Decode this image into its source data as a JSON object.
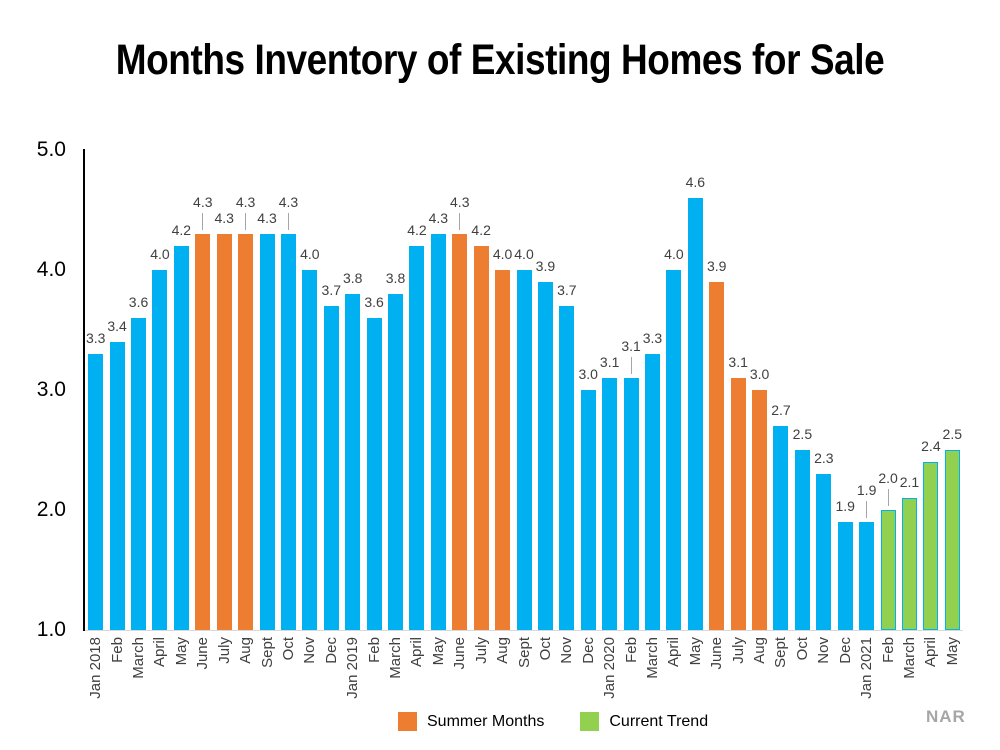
{
  "attribution": {
    "text": "NAR"
  },
  "chart_data": {
    "type": "bar",
    "title": "Months Inventory of Existing Homes for Sale",
    "xlabel": "",
    "ylabel": "",
    "ylim": [
      1.0,
      5.0
    ],
    "yticks": [
      5.0,
      4.0,
      3.0,
      2.0,
      1.0
    ],
    "grid": false,
    "legend_position": "bottom",
    "colors": {
      "regular": "#00B0F0",
      "summer": "#ED7D31",
      "trend": "#92D050",
      "trend_border": "#00B0F0",
      "data_label": "#404040",
      "leader_line": "#A6A6A6",
      "axis_line": "#000000",
      "baseline": "#D9D9D9"
    },
    "legend": [
      {
        "label": "Summer Months",
        "group": "summer",
        "color": "#ED7D31"
      },
      {
        "label": "Current Trend",
        "group": "trend",
        "color": "#92D050"
      }
    ],
    "points": [
      {
        "month": "Jan 2018",
        "value": 3.3,
        "group": "regular",
        "raised": false
      },
      {
        "month": "Feb",
        "value": 3.4,
        "group": "regular",
        "raised": false
      },
      {
        "month": "March",
        "value": 3.6,
        "group": "regular",
        "raised": false
      },
      {
        "month": "April",
        "value": 4.0,
        "group": "regular",
        "raised": false
      },
      {
        "month": "May",
        "value": 4.2,
        "group": "regular",
        "raised": false
      },
      {
        "month": "June",
        "value": 4.3,
        "group": "summer",
        "raised": true
      },
      {
        "month": "July",
        "value": 4.3,
        "group": "summer",
        "raised": false
      },
      {
        "month": "Aug",
        "value": 4.3,
        "group": "summer",
        "raised": true
      },
      {
        "month": "Sept",
        "value": 4.3,
        "group": "regular",
        "raised": false
      },
      {
        "month": "Oct",
        "value": 4.3,
        "group": "regular",
        "raised": true
      },
      {
        "month": "Nov",
        "value": 4.0,
        "group": "regular",
        "raised": false
      },
      {
        "month": "Dec",
        "value": 3.7,
        "group": "regular",
        "raised": false
      },
      {
        "month": "Jan 2019",
        "value": 3.8,
        "group": "regular",
        "raised": false
      },
      {
        "month": "Feb",
        "value": 3.6,
        "group": "regular",
        "raised": false
      },
      {
        "month": "March",
        "value": 3.8,
        "group": "regular",
        "raised": false
      },
      {
        "month": "April",
        "value": 4.2,
        "group": "regular",
        "raised": false
      },
      {
        "month": "May",
        "value": 4.3,
        "group": "regular",
        "raised": false
      },
      {
        "month": "June",
        "value": 4.3,
        "group": "summer",
        "raised": true
      },
      {
        "month": "July",
        "value": 4.2,
        "group": "summer",
        "raised": false
      },
      {
        "month": "Aug",
        "value": 4.0,
        "group": "summer",
        "raised": false
      },
      {
        "month": "Sept",
        "value": 4.0,
        "group": "regular",
        "raised": false
      },
      {
        "month": "Oct",
        "value": 3.9,
        "group": "regular",
        "raised": false
      },
      {
        "month": "Nov",
        "value": 3.7,
        "group": "regular",
        "raised": false
      },
      {
        "month": "Dec",
        "value": 3.0,
        "group": "regular",
        "raised": false
      },
      {
        "month": "Jan 2020",
        "value": 3.1,
        "group": "regular",
        "raised": false
      },
      {
        "month": "Feb",
        "value": 3.1,
        "group": "regular",
        "raised": true
      },
      {
        "month": "March",
        "value": 3.3,
        "group": "regular",
        "raised": false
      },
      {
        "month": "April",
        "value": 4.0,
        "group": "regular",
        "raised": false
      },
      {
        "month": "May",
        "value": 4.6,
        "group": "regular",
        "raised": false
      },
      {
        "month": "June",
        "value": 3.9,
        "group": "summer",
        "raised": false
      },
      {
        "month": "July",
        "value": 3.1,
        "group": "summer",
        "raised": false
      },
      {
        "month": "Aug",
        "value": 3.0,
        "group": "summer",
        "raised": false
      },
      {
        "month": "Sept",
        "value": 2.7,
        "group": "regular",
        "raised": false
      },
      {
        "month": "Oct",
        "value": 2.5,
        "group": "regular",
        "raised": false
      },
      {
        "month": "Nov",
        "value": 2.3,
        "group": "regular",
        "raised": false
      },
      {
        "month": "Dec",
        "value": 1.9,
        "group": "regular",
        "raised": false
      },
      {
        "month": "Jan 2021",
        "value": 1.9,
        "group": "regular",
        "raised": true
      },
      {
        "month": "Feb",
        "value": 2.0,
        "group": "trend",
        "raised": true
      },
      {
        "month": "March",
        "value": 2.1,
        "group": "trend",
        "raised": false
      },
      {
        "month": "April",
        "value": 2.4,
        "group": "trend",
        "raised": false
      },
      {
        "month": "May",
        "value": 2.5,
        "group": "trend",
        "raised": false
      }
    ]
  }
}
